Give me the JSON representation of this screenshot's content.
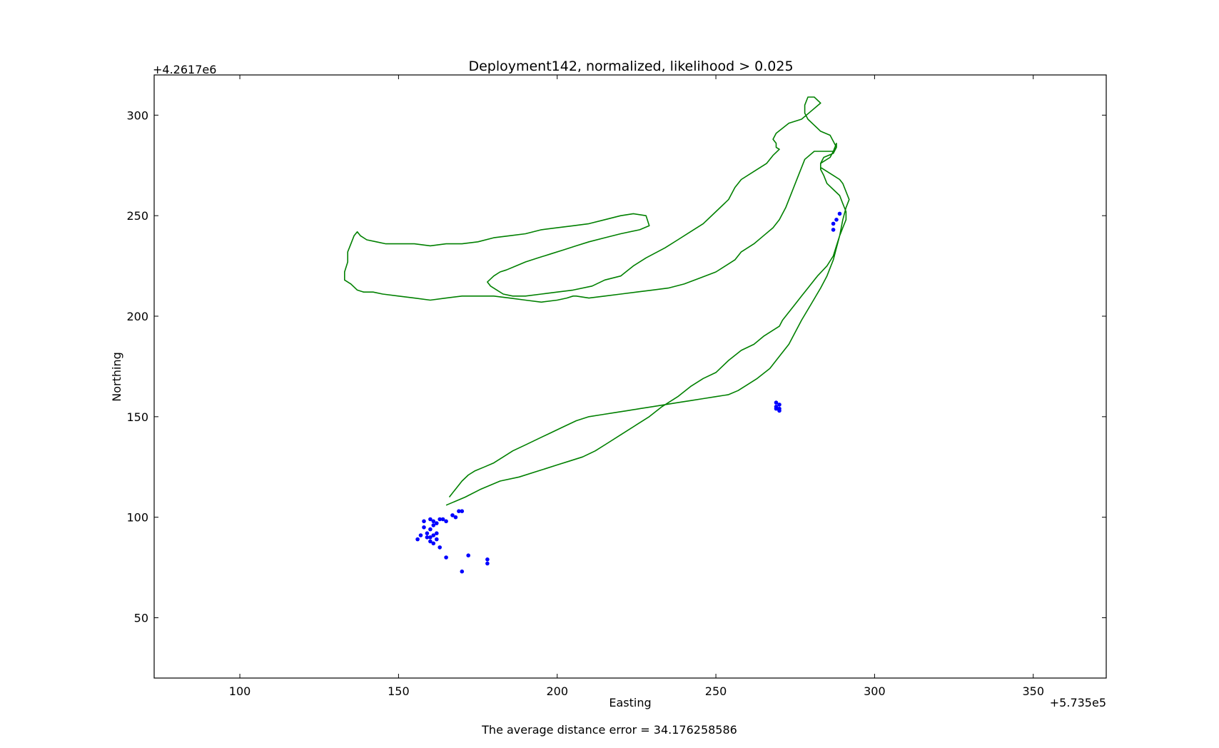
{
  "chart_data": {
    "type": "scatter",
    "title": "Deployment142, normalized, likelihood > 0.025",
    "xlabel": "Easting",
    "ylabel": "Northing",
    "x_offset_label": "+5.735e5",
    "y_offset_label": "+4.2617e6",
    "xlim": [
      73,
      373
    ],
    "ylim": [
      20,
      320
    ],
    "xticks": [
      100,
      150,
      200,
      250,
      300,
      350
    ],
    "yticks": [
      50,
      100,
      150,
      200,
      250,
      300
    ],
    "grid": false,
    "colors": {
      "track": "#008000",
      "points": "#0000ff"
    },
    "series": [
      {
        "kind": "line",
        "x": [
          165,
          171,
          176,
          182,
          188,
          194,
          200,
          204,
          208,
          212,
          216,
          220,
          225,
          229,
          233,
          238,
          242,
          246,
          250,
          254,
          258,
          262,
          265,
          268,
          270,
          271,
          273,
          275,
          277,
          279,
          282,
          285,
          287,
          288,
          289,
          290,
          291,
          291,
          290,
          289,
          287,
          285,
          284,
          283,
          283,
          284,
          287,
          288,
          287,
          286,
          283,
          281,
          279,
          278,
          278,
          279,
          281,
          283,
          280,
          277,
          273,
          269,
          268,
          269,
          269,
          270,
          268,
          266,
          262,
          258,
          256,
          254,
          250,
          246,
          242,
          238,
          234,
          228,
          224,
          220,
          215,
          211,
          205,
          200,
          195,
          190,
          186,
          183,
          181,
          179,
          178,
          180,
          182,
          184,
          187,
          190,
          194,
          198,
          202,
          206,
          210,
          215,
          220,
          226,
          229,
          228,
          224,
          220,
          215,
          210,
          205,
          200,
          195,
          190,
          185,
          180,
          175,
          170,
          165,
          160,
          155,
          150,
          146,
          143,
          140,
          138,
          137,
          136,
          135,
          134,
          134,
          133,
          133,
          135,
          137,
          139,
          141,
          142,
          145,
          150,
          155,
          160,
          165,
          170,
          175,
          180,
          185,
          190,
          195,
          200,
          203,
          205,
          206,
          210,
          215,
          220,
          225,
          230,
          235,
          240,
          245,
          250,
          253,
          256,
          258,
          262,
          265,
          268,
          270,
          272,
          274,
          276,
          278,
          281,
          284,
          287,
          288,
          288,
          287,
          286,
          284,
          283,
          283,
          285,
          287,
          289,
          290,
          291,
          292,
          291,
          290,
          289,
          288,
          287,
          286,
          285,
          283,
          280,
          277,
          275,
          273,
          270,
          267,
          263,
          260,
          257,
          254,
          250,
          246,
          242,
          238,
          234,
          230,
          226,
          222,
          218,
          214,
          210,
          206,
          202,
          198,
          194,
          190,
          186,
          183,
          180,
          177,
          174,
          172,
          170,
          168,
          166
        ],
        "y": [
          106,
          110,
          114,
          118,
          120,
          123,
          126,
          128,
          130,
          133,
          137,
          141,
          146,
          150,
          155,
          160,
          165,
          169,
          172,
          178,
          183,
          186,
          190,
          193,
          195,
          198,
          202,
          206,
          210,
          214,
          220,
          225,
          230,
          235,
          240,
          244,
          248,
          252,
          256,
          260,
          263,
          266,
          270,
          273,
          276,
          279,
          281,
          284,
          287,
          290,
          292,
          295,
          298,
          301,
          305,
          309,
          309,
          306,
          302,
          298,
          296,
          291,
          288,
          286,
          284,
          283,
          280,
          276,
          272,
          268,
          264,
          258,
          252,
          246,
          242,
          238,
          234,
          229,
          225,
          220,
          218,
          215,
          213,
          212,
          211,
          210,
          210,
          211,
          213,
          215,
          217,
          220,
          222,
          223,
          225,
          227,
          229,
          231,
          233,
          235,
          237,
          239,
          241,
          243,
          245,
          250,
          251,
          250,
          248,
          246,
          245,
          244,
          243,
          241,
          240,
          239,
          237,
          236,
          236,
          235,
          236,
          236,
          236,
          237,
          238,
          240,
          242,
          240,
          236,
          232,
          227,
          222,
          218,
          216,
          213,
          212,
          212,
          212,
          211,
          210,
          209,
          208,
          209,
          210,
          210,
          210,
          209,
          208,
          207,
          208,
          209,
          210,
          210,
          209,
          210,
          211,
          212,
          213,
          214,
          216,
          219,
          222,
          225,
          228,
          232,
          236,
          240,
          244,
          248,
          254,
          262,
          270,
          278,
          282,
          282,
          282,
          284,
          286,
          282,
          279,
          277,
          276,
          274,
          272,
          270,
          268,
          266,
          262,
          258,
          254,
          248,
          240,
          234,
          228,
          224,
          220,
          214,
          206,
          198,
          192,
          186,
          180,
          174,
          169,
          166,
          163,
          161,
          160,
          159,
          158,
          157,
          156,
          155,
          154,
          153,
          152,
          151,
          150,
          148,
          145,
          142,
          139,
          136,
          133,
          130,
          127,
          125,
          123,
          121,
          118,
          114,
          110
        ]
      },
      {
        "kind": "scatter",
        "x": [
          156,
          157,
          158,
          158,
          159,
          159,
          160,
          160,
          160,
          160,
          161,
          161,
          161,
          161,
          162,
          162,
          162,
          163,
          163,
          164,
          165,
          165,
          167,
          168,
          169,
          170,
          170,
          172,
          178,
          178,
          287,
          287,
          288,
          289,
          269,
          270,
          269,
          270,
          269,
          270
        ],
        "y": [
          89,
          91,
          95,
          98,
          90,
          92,
          88,
          90,
          94,
          99,
          87,
          91,
          96,
          98,
          89,
          92,
          97,
          85,
          99,
          99,
          98,
          80,
          101,
          100,
          103,
          103,
          73,
          81,
          79,
          77,
          243,
          246,
          248,
          251,
          157,
          156,
          154,
          153,
          155,
          154
        ]
      }
    ]
  },
  "footer": {
    "text": "The average distance error = 34.176258586"
  }
}
